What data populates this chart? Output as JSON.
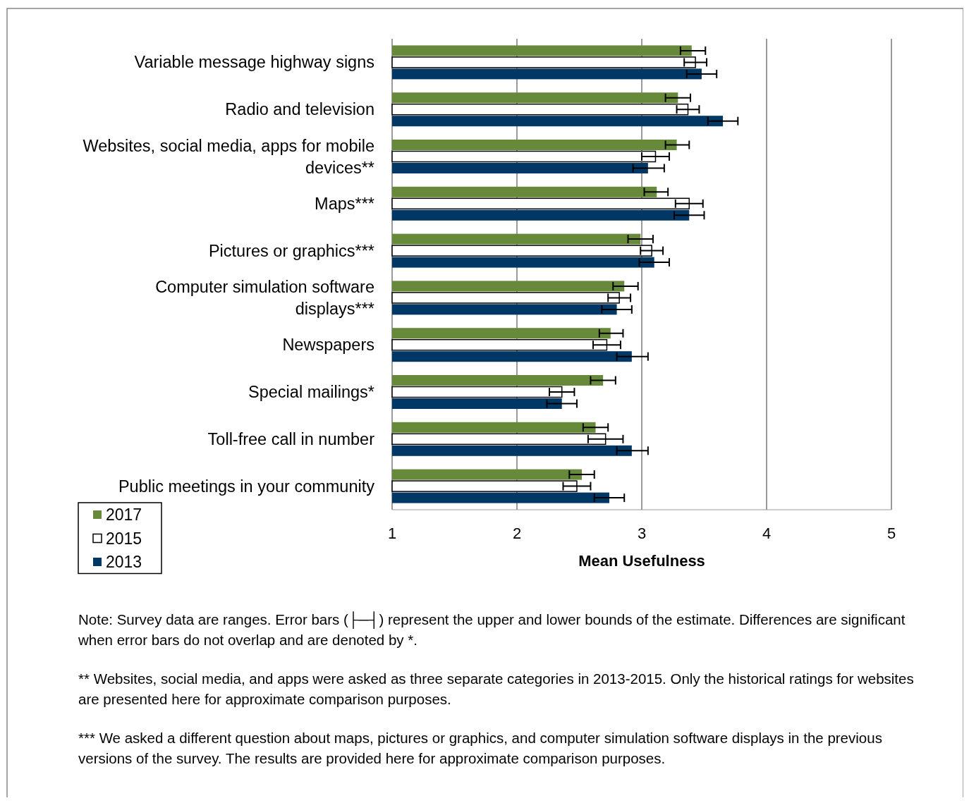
{
  "chart_data": {
    "type": "bar",
    "orientation": "horizontal",
    "xlabel": "Mean Usefulness",
    "categories": [
      "Variable message highway signs",
      "Radio and television",
      "Websites, social media, apps for mobile devices**",
      "Maps***",
      "Pictures or graphics***",
      "Computer simulation software displays***",
      "Newspapers",
      "Special mailings*",
      "Toll-free call in number",
      "Public meetings in your community"
    ],
    "series": [
      {
        "name": "2017",
        "color": "#668a3a",
        "values": [
          3.4,
          3.29,
          3.28,
          3.12,
          2.99,
          2.86,
          2.75,
          2.69,
          2.63,
          2.52
        ],
        "errors": [
          [
            3.31,
            3.51
          ],
          [
            3.19,
            3.39
          ],
          [
            3.19,
            3.38
          ],
          [
            3.02,
            3.21
          ],
          [
            2.89,
            3.09
          ],
          [
            2.77,
            2.97
          ],
          [
            2.66,
            2.85
          ],
          [
            2.59,
            2.79
          ],
          [
            2.53,
            2.73
          ],
          [
            2.42,
            2.62
          ]
        ]
      },
      {
        "name": "2015",
        "color": "#ffffff",
        "values": [
          3.43,
          3.37,
          3.11,
          3.38,
          3.08,
          2.82,
          2.72,
          2.36,
          2.71,
          2.48
        ],
        "errors": [
          [
            3.34,
            3.52
          ],
          [
            3.28,
            3.46
          ],
          [
            3.0,
            3.22
          ],
          [
            3.27,
            3.49
          ],
          [
            2.99,
            3.17
          ],
          [
            2.73,
            2.91
          ],
          [
            2.61,
            2.83
          ],
          [
            2.26,
            2.46
          ],
          [
            2.57,
            2.85
          ],
          [
            2.37,
            2.59
          ]
        ]
      },
      {
        "name": "2013",
        "color": "#003764",
        "values": [
          3.48,
          3.65,
          3.05,
          3.38,
          3.1,
          2.8,
          2.92,
          2.36,
          2.92,
          2.74
        ],
        "errors": [
          [
            3.36,
            3.6
          ],
          [
            3.53,
            3.77
          ],
          [
            2.93,
            3.18
          ],
          [
            3.26,
            3.5
          ],
          [
            2.98,
            3.22
          ],
          [
            2.68,
            2.92
          ],
          [
            2.8,
            3.05
          ],
          [
            2.24,
            2.48
          ],
          [
            2.8,
            3.05
          ],
          [
            2.62,
            2.86
          ]
        ]
      }
    ],
    "xlim": [
      1,
      5
    ],
    "xticks": [
      1,
      2,
      3,
      4,
      5
    ],
    "grid": "x",
    "legend": "bottom left",
    "annotations": [
      "Note: Survey data are ranges. Error bars (├─┤) represent the upper and lower bounds of the estimate. Differences are significant when error bars do not overlap and are denoted by *.",
      "** Websites, social media, and apps were asked as three separate categories in 2013-2015. Only the historical ratings for websites are presented here for approximate comparison purposes.",
      "*** We asked a different question about maps, pictures or graphics, and computer simulation software displays in the previous versions of the survey. The results are provided here for approximate comparison purposes."
    ]
  }
}
